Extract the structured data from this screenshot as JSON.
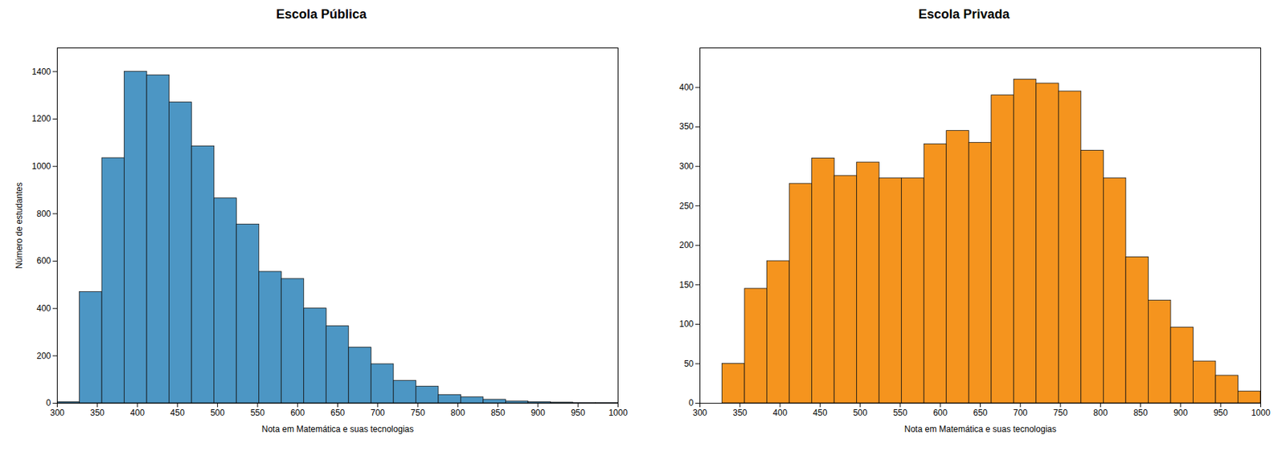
{
  "chart_data": [
    {
      "type": "histogram",
      "title": "Escola Pública",
      "xlabel": "Nota em Matemática e suas tecnologias",
      "ylabel": "Número de estudantes",
      "color": "#4C96C4",
      "bins": [
        300,
        328,
        356,
        384,
        412,
        440,
        468,
        496,
        524,
        552,
        580,
        608,
        636,
        664,
        692,
        720,
        748,
        776,
        804,
        832,
        860,
        888,
        916,
        944,
        972,
        1000
      ],
      "values": [
        5,
        470,
        1035,
        1400,
        1385,
        1270,
        1085,
        865,
        755,
        555,
        525,
        400,
        325,
        235,
        165,
        95,
        70,
        35,
        25,
        15,
        8,
        5,
        3,
        1,
        1
      ],
      "xlim": [
        300,
        1000
      ],
      "xticks": [
        300,
        350,
        400,
        450,
        500,
        550,
        600,
        650,
        700,
        750,
        800,
        850,
        900,
        950,
        1000
      ],
      "ylim": [
        0,
        1500
      ],
      "yticks": [
        0,
        200,
        400,
        600,
        800,
        1000,
        1200,
        1400
      ]
    },
    {
      "type": "histogram",
      "title": "Escola Privada",
      "xlabel": "Nota em Matemática e suas tecnologias",
      "color": "#F5941E",
      "bins": [
        300,
        328,
        356,
        384,
        412,
        440,
        468,
        496,
        524,
        552,
        580,
        608,
        636,
        664,
        692,
        720,
        748,
        776,
        804,
        832,
        860,
        888,
        916,
        944,
        972,
        1000
      ],
      "values": [
        0,
        50,
        145,
        180,
        278,
        310,
        288,
        305,
        285,
        285,
        328,
        345,
        330,
        390,
        410,
        405,
        395,
        320,
        285,
        185,
        130,
        96,
        53,
        35,
        15
      ],
      "xlim": [
        300,
        1000
      ],
      "xticks": [
        300,
        350,
        400,
        450,
        500,
        550,
        600,
        650,
        700,
        750,
        800,
        850,
        900,
        950,
        1000
      ],
      "ylim": [
        0,
        450
      ],
      "yticks": [
        0,
        50,
        100,
        150,
        200,
        250,
        300,
        350,
        400
      ]
    }
  ]
}
